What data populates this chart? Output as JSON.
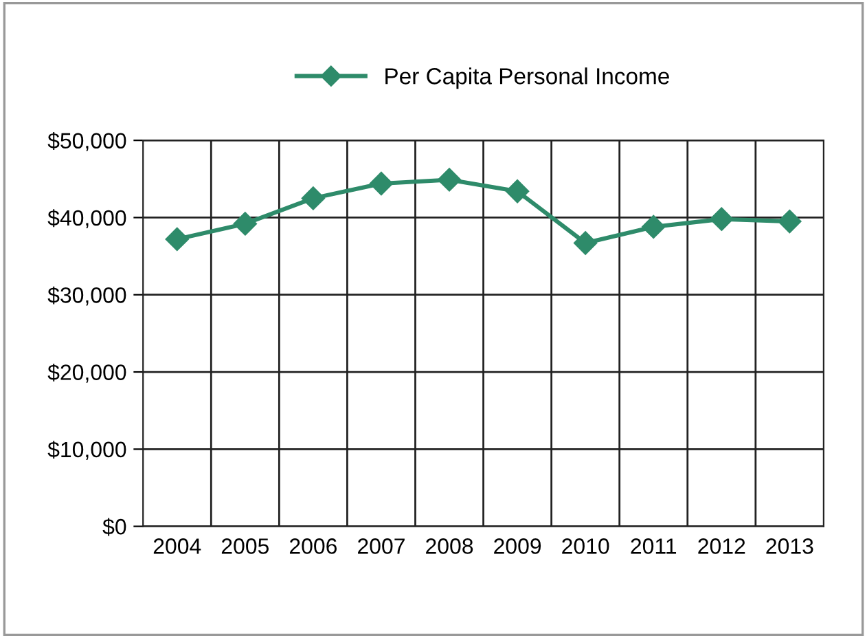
{
  "chart_data": {
    "type": "line",
    "categories": [
      "2004",
      "2005",
      "2006",
      "2007",
      "2008",
      "2009",
      "2010",
      "2011",
      "2012",
      "2013"
    ],
    "series": [
      {
        "name": "Per Capita Personal Income",
        "color": "#2e8b6a",
        "values": [
          37200,
          39200,
          42500,
          44400,
          44900,
          43400,
          36700,
          38800,
          39800,
          39500
        ]
      }
    ],
    "ylim": [
      0,
      50000
    ],
    "yticks": [
      {
        "value": 0,
        "label": "$0"
      },
      {
        "value": 10000,
        "label": "$10,000"
      },
      {
        "value": 20000,
        "label": "$20,000"
      },
      {
        "value": 30000,
        "label": "$30,000"
      },
      {
        "value": 40000,
        "label": "$40,000"
      },
      {
        "value": 50000,
        "label": "$50,000"
      }
    ],
    "grid": true,
    "legend": "top",
    "marker": "diamond",
    "line_style": "solid"
  }
}
